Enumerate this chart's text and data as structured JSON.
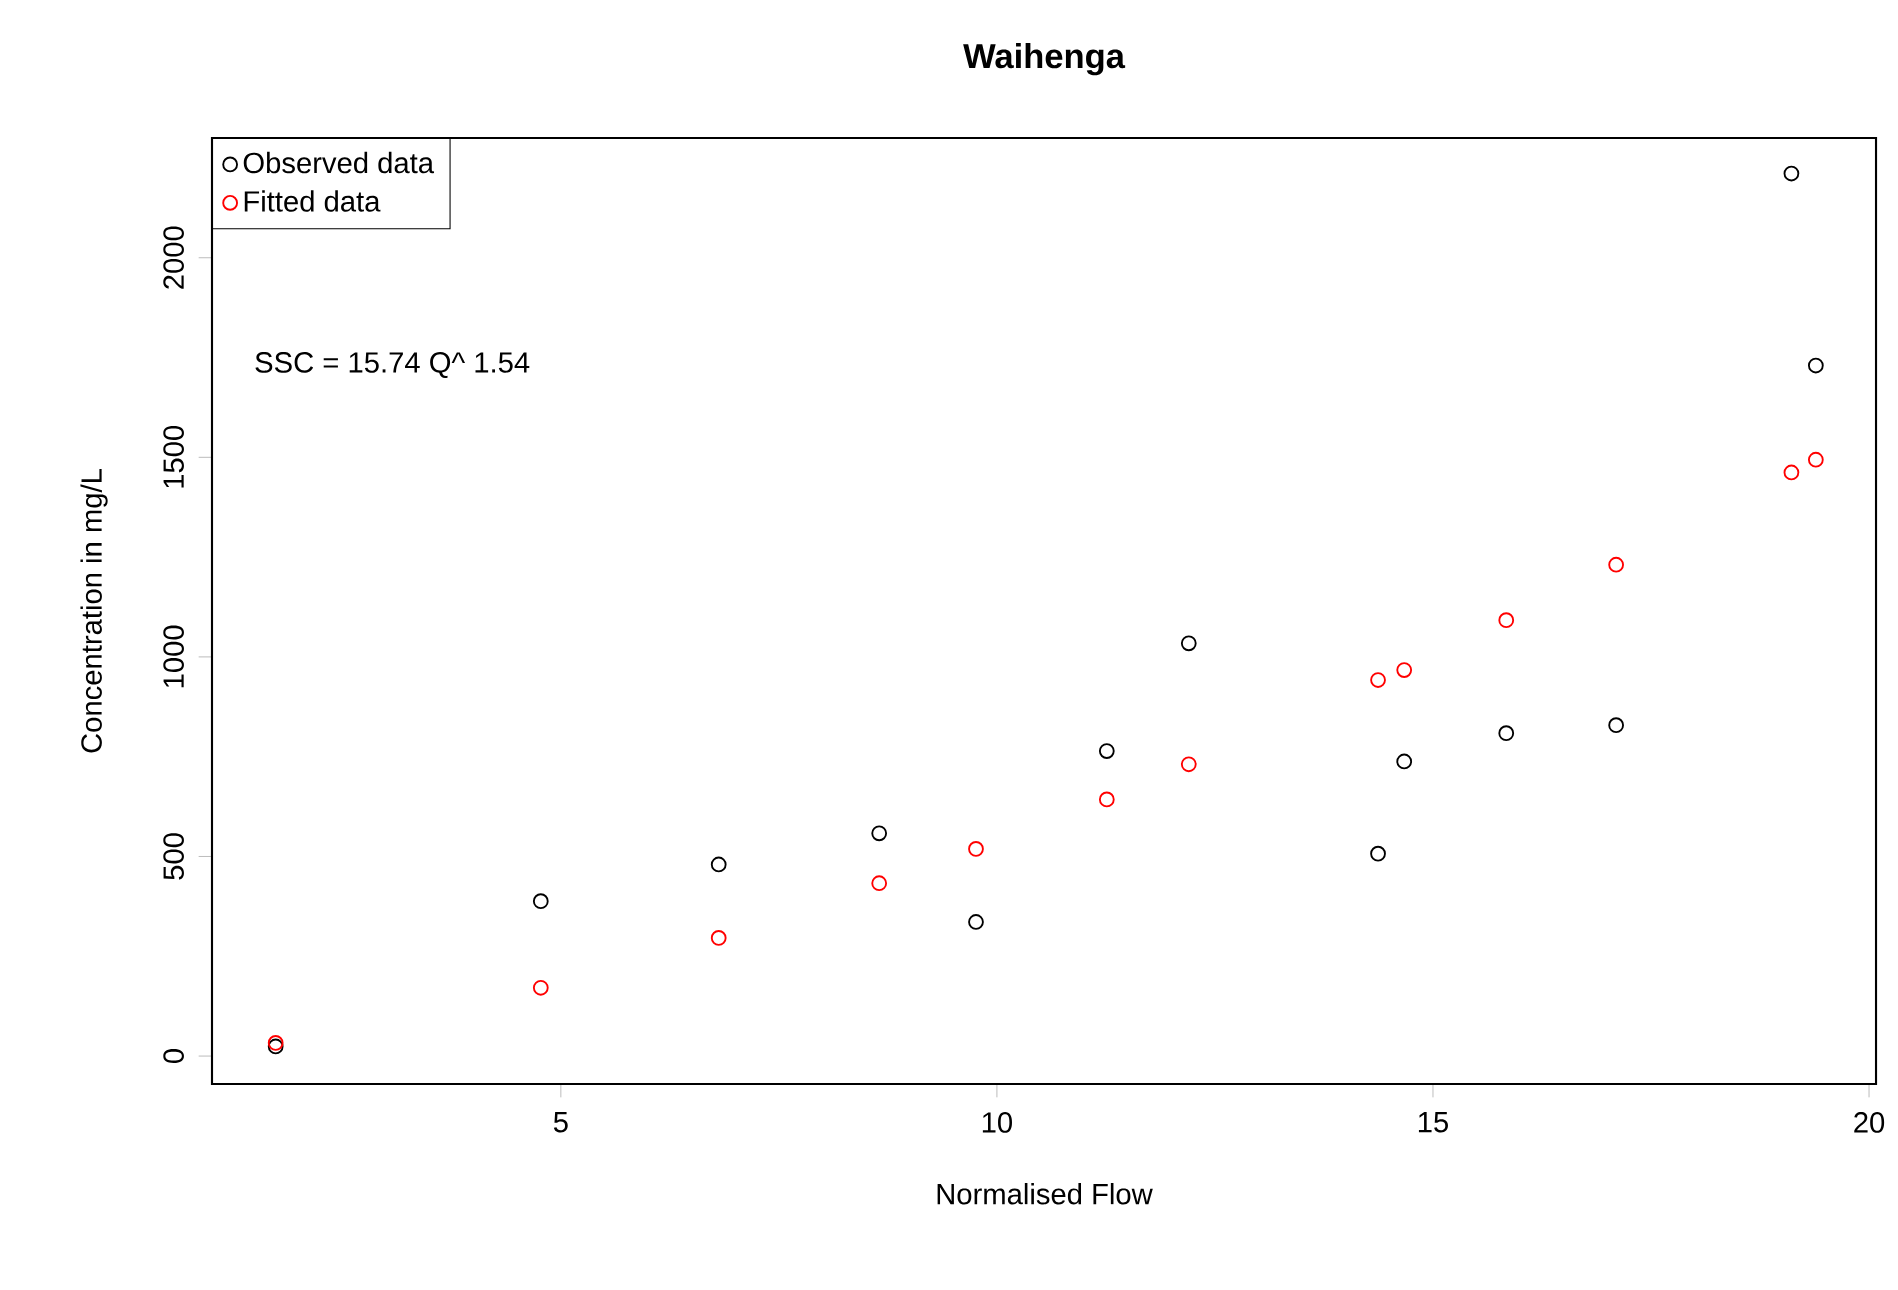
{
  "chart_data": {
    "type": "scatter",
    "title": "Waihenga",
    "xlabel": "Normalised Flow",
    "ylabel": "Concentration in mg/L",
    "annotations": [
      "SSC =  15.74 Q^ 1.54"
    ],
    "x": [
      1.73,
      4.77,
      6.81,
      8.65,
      9.76,
      11.26,
      12.2,
      14.37,
      14.67,
      15.84,
      17.1,
      19.11,
      19.39
    ],
    "series": [
      {
        "name": "Observed data",
        "color": "#000000",
        "values": [
          24,
          388,
          480,
          558,
          336,
          764,
          1034,
          507,
          738,
          809,
          829,
          2211,
          1730
        ]
      },
      {
        "name": "Fitted data",
        "color": "#ff0000",
        "values": [
          33,
          171,
          296,
          433,
          519,
          643,
          731,
          942,
          967,
          1092,
          1231,
          1462,
          1494
        ]
      }
    ],
    "xlim": [
      1.0,
      20.08
    ],
    "ylim": [
      -70,
      2300
    ],
    "xticks": [
      5,
      10,
      15,
      20
    ],
    "yticks": [
      0,
      500,
      1000,
      1500,
      2000
    ],
    "legend": "top left",
    "marker": "circle",
    "grid": false
  }
}
